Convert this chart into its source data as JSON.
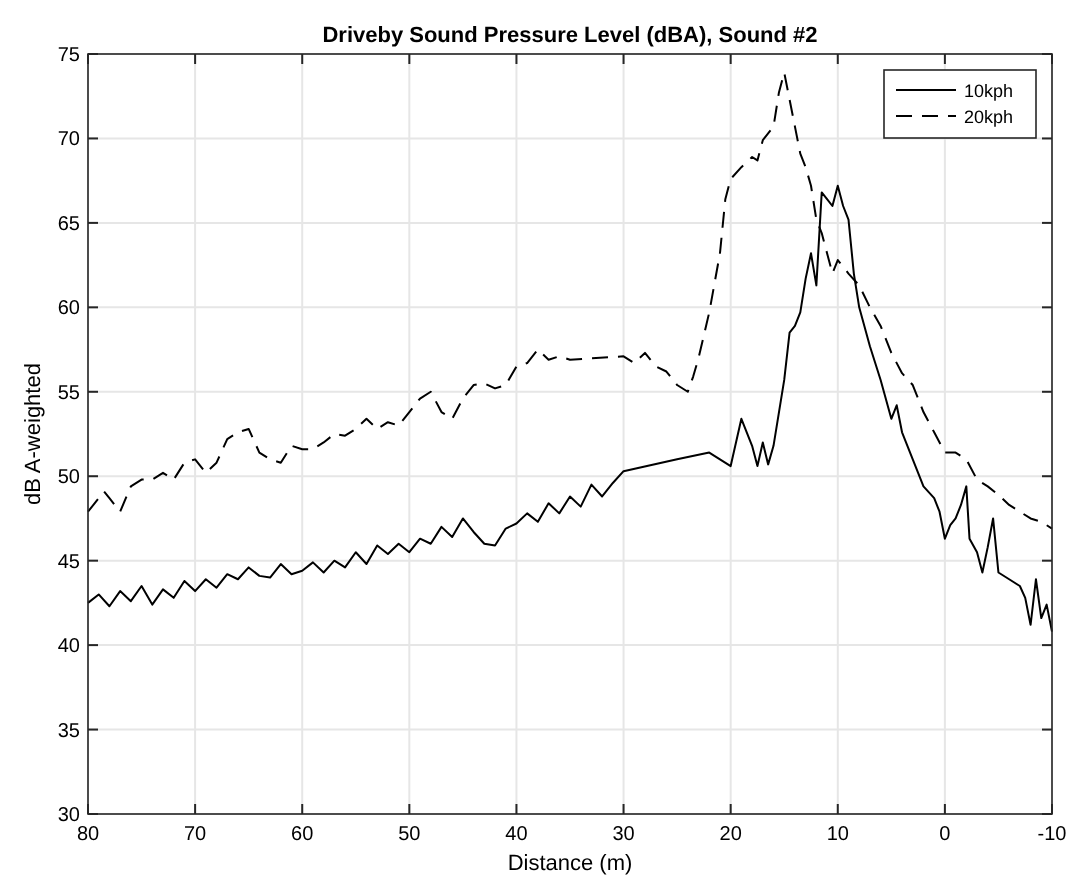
{
  "chart_data": {
    "type": "line",
    "title": "Driveby Sound Pressure Level (dBA), Sound #2",
    "xlabel": "Distance (m)",
    "ylabel": "dB A-weighted",
    "xlim": [
      80,
      -10
    ],
    "xticks": [
      80,
      70,
      60,
      50,
      40,
      30,
      20,
      10,
      0,
      -10
    ],
    "ylim": [
      30,
      75
    ],
    "yticks": [
      30,
      35,
      40,
      45,
      50,
      55,
      60,
      65,
      70,
      75
    ],
    "grid": true,
    "legend": "top right",
    "series": [
      {
        "name": "10kph",
        "color": "#000000",
        "line_style": "solid",
        "x": [
          80,
          79,
          78,
          77,
          76,
          75,
          74,
          73,
          72,
          71,
          70,
          69,
          68,
          67,
          66,
          65,
          64,
          63,
          62,
          61,
          60,
          59,
          58,
          57,
          56,
          55,
          54,
          53,
          52,
          51,
          50,
          49,
          48,
          47,
          46,
          45,
          44,
          43,
          42,
          41,
          40,
          39,
          38,
          37,
          36,
          35,
          34,
          33,
          32,
          31,
          30,
          25,
          22,
          20,
          19,
          18,
          17.5,
          17,
          16.5,
          16,
          15,
          14.5,
          14,
          13.5,
          13,
          12.5,
          12,
          11.5,
          11,
          10.5,
          10,
          9.5,
          9,
          8.5,
          8,
          7,
          6,
          5,
          4.5,
          4,
          3,
          2,
          1,
          0.5,
          0,
          -0.5,
          -1,
          -1.5,
          -2,
          -2.3,
          -3,
          -3.5,
          -4,
          -4.5,
          -5,
          -6,
          -7,
          -7.5,
          -8,
          -8.5,
          -9,
          -9.5,
          -10
        ],
        "values": [
          42.5,
          43,
          42.3,
          43.2,
          42.6,
          43.5,
          42.4,
          43.3,
          42.8,
          43.8,
          43.2,
          43.9,
          43.4,
          44.2,
          43.9,
          44.6,
          44.1,
          44,
          44.8,
          44.2,
          44.4,
          44.9,
          44.3,
          45,
          44.6,
          45.5,
          44.8,
          45.9,
          45.4,
          46,
          45.5,
          46.3,
          46,
          47,
          46.4,
          47.5,
          46.7,
          46,
          45.9,
          46.9,
          47.2,
          47.8,
          47.3,
          48.4,
          47.8,
          48.8,
          48.2,
          49.5,
          48.8,
          49.6,
          50.3,
          51,
          51.4,
          50.6,
          53.4,
          51.8,
          50.6,
          52,
          50.7,
          51.8,
          55.7,
          58.5,
          58.9,
          59.7,
          61.7,
          63.2,
          61.3,
          66.8,
          66.4,
          66,
          67.2,
          66,
          65.2,
          62,
          60,
          57.7,
          55.7,
          53.4,
          54.2,
          52.6,
          51,
          49.4,
          48.7,
          47.9,
          46.3,
          47.1,
          47.5,
          48.3,
          49.4,
          46.3,
          45.5,
          44.3,
          45.8,
          47.5,
          44.3,
          43.9,
          43.5,
          42.8,
          41.2,
          43.9,
          41.6,
          42.4,
          40.8
        ]
      },
      {
        "name": "20kph",
        "color": "#000000",
        "line_style": "dashed",
        "x": [
          80,
          78.5,
          78,
          77,
          76,
          75,
          74,
          73,
          72,
          71,
          70,
          69,
          68,
          67,
          66,
          65,
          64,
          63,
          62,
          61,
          60,
          59,
          58,
          57,
          56,
          55,
          54,
          53,
          52,
          51,
          50,
          49,
          48,
          47,
          46,
          45,
          44,
          43,
          42,
          41,
          40,
          39,
          38,
          37,
          36,
          35,
          30,
          29,
          28,
          27,
          26,
          25,
          24,
          23.5,
          23,
          22,
          21,
          20.5,
          20,
          19,
          18,
          17.5,
          17,
          16,
          15.5,
          15,
          14.5,
          14,
          13.5,
          13,
          12.5,
          12,
          11.5,
          11,
          10.5,
          10,
          9,
          8,
          7,
          6,
          5,
          4,
          3,
          2,
          1,
          0,
          -1,
          -2,
          -3,
          -4,
          -5,
          -6,
          -7,
          -8,
          -9,
          -10
        ],
        "values": [
          47.9,
          49.1,
          48.7,
          47.9,
          49.4,
          49.8,
          49.8,
          50.2,
          49.8,
          50.8,
          51,
          50.2,
          50.8,
          52.2,
          52.6,
          52.8,
          51.4,
          51,
          50.8,
          51.8,
          51.6,
          51.6,
          52,
          52.5,
          52.4,
          52.8,
          53.4,
          52.8,
          53.2,
          53,
          53.8,
          54.6,
          55,
          53.8,
          53.4,
          54.6,
          55.4,
          55.5,
          55.2,
          55.4,
          56.5,
          56.7,
          57.5,
          56.9,
          57.1,
          56.9,
          57.1,
          56.7,
          57.3,
          56.5,
          56.2,
          55.4,
          55,
          55.9,
          57,
          59.7,
          63.2,
          66.4,
          67.6,
          68.3,
          68.9,
          68.7,
          69.9,
          70.7,
          72.7,
          73.9,
          72.3,
          70.7,
          69.1,
          68.3,
          67.2,
          65.2,
          64.4,
          63.2,
          62,
          62.8,
          62,
          61.3,
          60,
          58.9,
          57.3,
          56.1,
          55.4,
          53.8,
          52.6,
          51.4,
          51.4,
          51,
          49.8,
          49.4,
          48.9,
          48.3,
          47.9,
          47.5,
          47.3,
          46.9
        ]
      }
    ]
  }
}
